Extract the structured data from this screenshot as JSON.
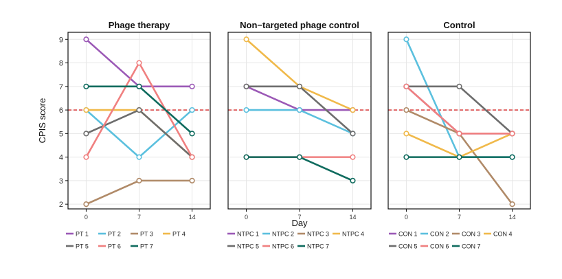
{
  "chart_data": {
    "type": "line",
    "ylabel": "CPIS score",
    "xlabel": "Day",
    "x": [
      0,
      7,
      14
    ],
    "x_ticks": [
      "0",
      "7",
      "14"
    ],
    "ylim": [
      1.8,
      9.3
    ],
    "y_ticks": [
      2,
      3,
      4,
      5,
      6,
      7,
      8,
      9
    ],
    "threshold": 6,
    "threshold_color": "#d62728",
    "grid": true,
    "legend_position": "bottom",
    "panels": [
      {
        "title": "Phage therapy",
        "series": [
          {
            "name": "PT 1",
            "color": "#9b59b6",
            "values": [
              9,
              7,
              7
            ]
          },
          {
            "name": "PT 2",
            "color": "#5bc0de",
            "values": [
              6,
              4,
              6
            ]
          },
          {
            "name": "PT 3",
            "color": "#b08a68",
            "values": [
              2,
              3,
              3
            ]
          },
          {
            "name": "PT 4",
            "color": "#f0b94a",
            "values": [
              6,
              6,
              4
            ]
          },
          {
            "name": "PT 5",
            "color": "#6d6d6d",
            "values": [
              5,
              6,
              4
            ]
          },
          {
            "name": "PT 6",
            "color": "#f08080",
            "values": [
              4,
              8,
              4
            ]
          },
          {
            "name": "PT 7",
            "color": "#0f6b5e",
            "values": [
              7,
              7,
              5
            ]
          }
        ]
      },
      {
        "title": "Non−targeted phage control",
        "series": [
          {
            "name": "NTPC 1",
            "color": "#9b59b6",
            "values": [
              7,
              6,
              6
            ]
          },
          {
            "name": "NTPC 2",
            "color": "#5bc0de",
            "values": [
              6,
              6,
              5
            ]
          },
          {
            "name": "NTPC 3",
            "color": "#b08a68",
            "values": [
              null,
              null,
              null
            ]
          },
          {
            "name": "NTPC 4",
            "color": "#f0b94a",
            "values": [
              9,
              7,
              6
            ]
          },
          {
            "name": "NTPC 5",
            "color": "#6d6d6d",
            "values": [
              7,
              7,
              5
            ]
          },
          {
            "name": "NTPC 6",
            "color": "#f08080",
            "values": [
              4,
              4,
              4
            ]
          },
          {
            "name": "NTPC 7",
            "color": "#0f6b5e",
            "values": [
              4,
              4,
              3
            ]
          }
        ]
      },
      {
        "title": "Control",
        "series": [
          {
            "name": "CON 1",
            "color": "#9b59b6",
            "values": [
              7,
              5,
              5
            ]
          },
          {
            "name": "CON 2",
            "color": "#5bc0de",
            "values": [
              9,
              4,
              4
            ]
          },
          {
            "name": "CON 3",
            "color": "#b08a68",
            "values": [
              6,
              5,
              2
            ]
          },
          {
            "name": "CON 4",
            "color": "#f0b94a",
            "values": [
              5,
              4,
              5
            ]
          },
          {
            "name": "CON 5",
            "color": "#6d6d6d",
            "values": [
              7,
              7,
              5
            ]
          },
          {
            "name": "CON 6",
            "color": "#f08080",
            "values": [
              7,
              5,
              5
            ]
          },
          {
            "name": "CON 7",
            "color": "#0f6b5e",
            "values": [
              4,
              4,
              4
            ]
          }
        ]
      }
    ]
  }
}
